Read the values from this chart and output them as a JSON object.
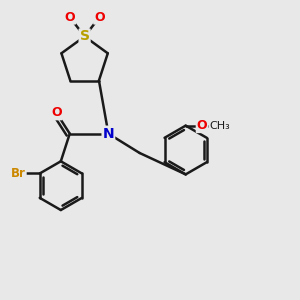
{
  "bg_color": "#e8e8e8",
  "bond_color": "#1a1a1a",
  "bond_width": 1.8,
  "S_color": "#b8a000",
  "O_color": "#ee0000",
  "N_color": "#0000cc",
  "Br_color": "#cc8800",
  "C_color": "#1a1a1a",
  "fig_size": [
    3.0,
    3.0
  ],
  "dpi": 100,
  "xlim": [
    0,
    10
  ],
  "ylim": [
    0,
    10
  ]
}
